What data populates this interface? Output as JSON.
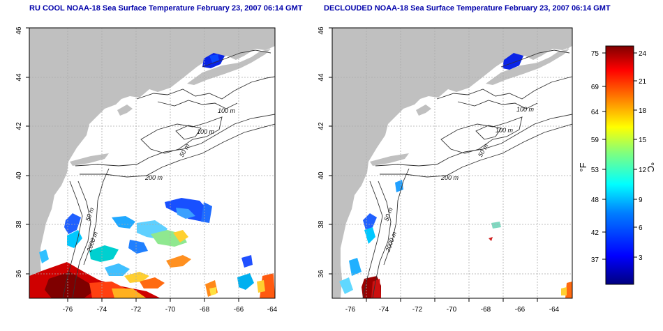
{
  "panels": [
    {
      "title": "RU COOL NOAA-18 Sea Surface Temperature February 23, 2007 06:14 GMT"
    },
    {
      "title": "DECLOUDED NOAA-18 Sea Surface Temperature February 23, 2007 06:14 GMT"
    }
  ],
  "axes": {
    "lon_ticks": [
      "-76",
      "-74",
      "-72",
      "-70",
      "-68",
      "-66",
      "-64"
    ],
    "lat_ticks": [
      "36",
      "38",
      "40",
      "42",
      "44",
      "46"
    ],
    "lon_range": [
      -77.2,
      -62.9
    ],
    "lat_range": [
      35.0,
      46.0
    ]
  },
  "contour_labels": {
    "left": [
      "100 m",
      "100 m",
      "50 m",
      "200 m",
      "50 m",
      "2000 m"
    ],
    "right": [
      "100 m",
      "100 m",
      "50 m",
      "200 m",
      "50 m",
      "2000 m"
    ]
  },
  "colorbar": {
    "f_label": "°F",
    "c_label": "°C",
    "f_ticks": [
      "75",
      "69",
      "64",
      "59",
      "53",
      "48",
      "42",
      "37"
    ],
    "c_ticks": [
      "24",
      "21",
      "18",
      "15",
      "12",
      "9",
      "6",
      "3"
    ],
    "colors": [
      "#00007f",
      "#0000ff",
      "#007fff",
      "#00ffff",
      "#7fff7f",
      "#ffff00",
      "#ff7f00",
      "#ff0000",
      "#7f0000"
    ]
  },
  "colors": {
    "land": "#c0c0c0",
    "ocean": "#ffffff",
    "contour": "#333333",
    "grid": "#aaaaaa"
  }
}
